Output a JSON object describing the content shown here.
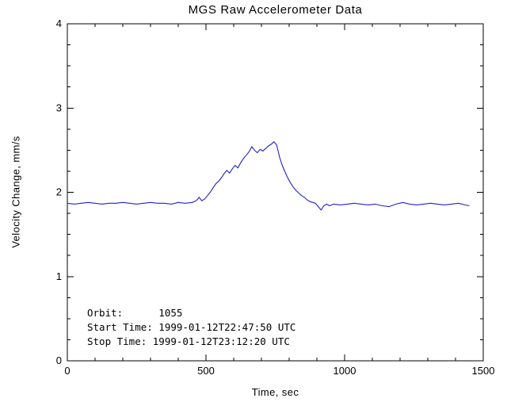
{
  "chart_data": {
    "type": "line",
    "title": "MGS Raw Accelerometer Data",
    "xlabel": "Time, sec",
    "ylabel": "Velocity Change, mm/s",
    "xlim": [
      0,
      1500
    ],
    "ylim": [
      0,
      4
    ],
    "xticks": [
      0,
      500,
      1000,
      1500
    ],
    "yticks": [
      0,
      1,
      2,
      3,
      4
    ],
    "x_minor_interval": 100,
    "y_minor_interval": 0.25,
    "grid": false,
    "legend": "none",
    "line_color": "#2222cc",
    "axis_color": "#000000",
    "background": "#ffffff",
    "annotations": [
      "Orbit:      1055",
      "Start Time: 1999-01-12T22:47:50 UTC",
      "Stop Time: 1999-01-12T23:12:20 UTC"
    ],
    "series": [
      {
        "name": "velocity-change",
        "x": [
          0,
          25,
          50,
          75,
          100,
          125,
          150,
          175,
          200,
          225,
          250,
          275,
          300,
          325,
          350,
          375,
          400,
          425,
          450,
          465,
          475,
          485,
          495,
          505,
          515,
          525,
          535,
          545,
          555,
          565,
          575,
          585,
          595,
          605,
          615,
          625,
          635,
          645,
          655,
          665,
          675,
          685,
          695,
          705,
          715,
          725,
          735,
          745,
          755,
          765,
          775,
          785,
          795,
          805,
          815,
          825,
          835,
          845,
          855,
          865,
          875,
          885,
          895,
          905,
          915,
          925,
          935,
          945,
          960,
          985,
          1010,
          1035,
          1060,
          1085,
          1110,
          1135,
          1160,
          1185,
          1210,
          1235,
          1260,
          1285,
          1310,
          1335,
          1360,
          1385,
          1410,
          1435,
          1450
        ],
        "y": [
          1.87,
          1.86,
          1.87,
          1.88,
          1.87,
          1.86,
          1.87,
          1.87,
          1.88,
          1.87,
          1.86,
          1.87,
          1.88,
          1.87,
          1.87,
          1.86,
          1.88,
          1.87,
          1.88,
          1.9,
          1.94,
          1.9,
          1.92,
          1.96,
          2.0,
          2.05,
          2.1,
          2.13,
          2.17,
          2.22,
          2.26,
          2.23,
          2.28,
          2.32,
          2.29,
          2.35,
          2.4,
          2.44,
          2.48,
          2.54,
          2.5,
          2.47,
          2.51,
          2.49,
          2.52,
          2.55,
          2.57,
          2.6,
          2.56,
          2.42,
          2.32,
          2.24,
          2.17,
          2.11,
          2.06,
          2.02,
          1.99,
          1.96,
          1.94,
          1.91,
          1.89,
          1.88,
          1.87,
          1.83,
          1.79,
          1.84,
          1.86,
          1.84,
          1.86,
          1.85,
          1.86,
          1.87,
          1.86,
          1.85,
          1.86,
          1.84,
          1.83,
          1.86,
          1.88,
          1.86,
          1.85,
          1.86,
          1.87,
          1.86,
          1.85,
          1.86,
          1.87,
          1.85,
          1.84
        ]
      }
    ]
  }
}
